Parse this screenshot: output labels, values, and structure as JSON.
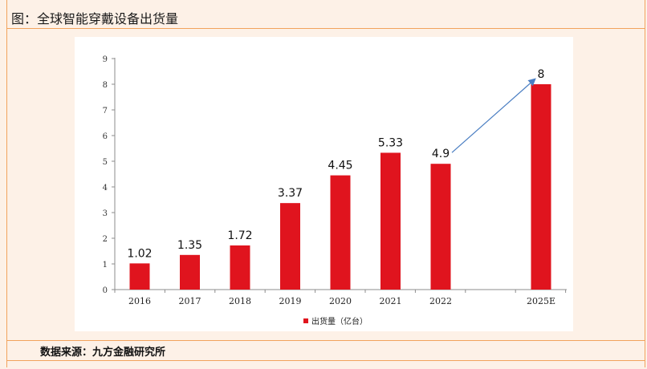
{
  "header": {
    "title": "图：全球智能穿戴设备出货量"
  },
  "footer": {
    "source": "数据来源：九方金融研究所"
  },
  "colors": {
    "bar": "#e0141e",
    "arrow": "#4a7ec2",
    "frame": "#f2a35c",
    "background": "#fdf1e7"
  },
  "chart_data": {
    "type": "bar",
    "title": "",
    "xlabel": "",
    "ylabel": "",
    "categories": [
      "2016",
      "2017",
      "2018",
      "2019",
      "2020",
      "2021",
      "2022",
      "2025E"
    ],
    "series": [
      {
        "name": "出货量（亿台）",
        "values": [
          1.02,
          1.35,
          1.72,
          3.37,
          4.45,
          5.33,
          4.9,
          8
        ]
      }
    ],
    "data_labels": [
      "1.02",
      "1.35",
      "1.72",
      "3.37",
      "4.45",
      "5.33",
      "4.9",
      "8"
    ],
    "yticks": [
      "0",
      "1",
      "2",
      "3",
      "4",
      "5",
      "6",
      "7",
      "8",
      "9"
    ],
    "ylim": [
      0,
      9
    ],
    "grid": false,
    "legend": "bottom",
    "annotation": {
      "type": "arrow",
      "from": "2022",
      "to": "2025E"
    }
  }
}
